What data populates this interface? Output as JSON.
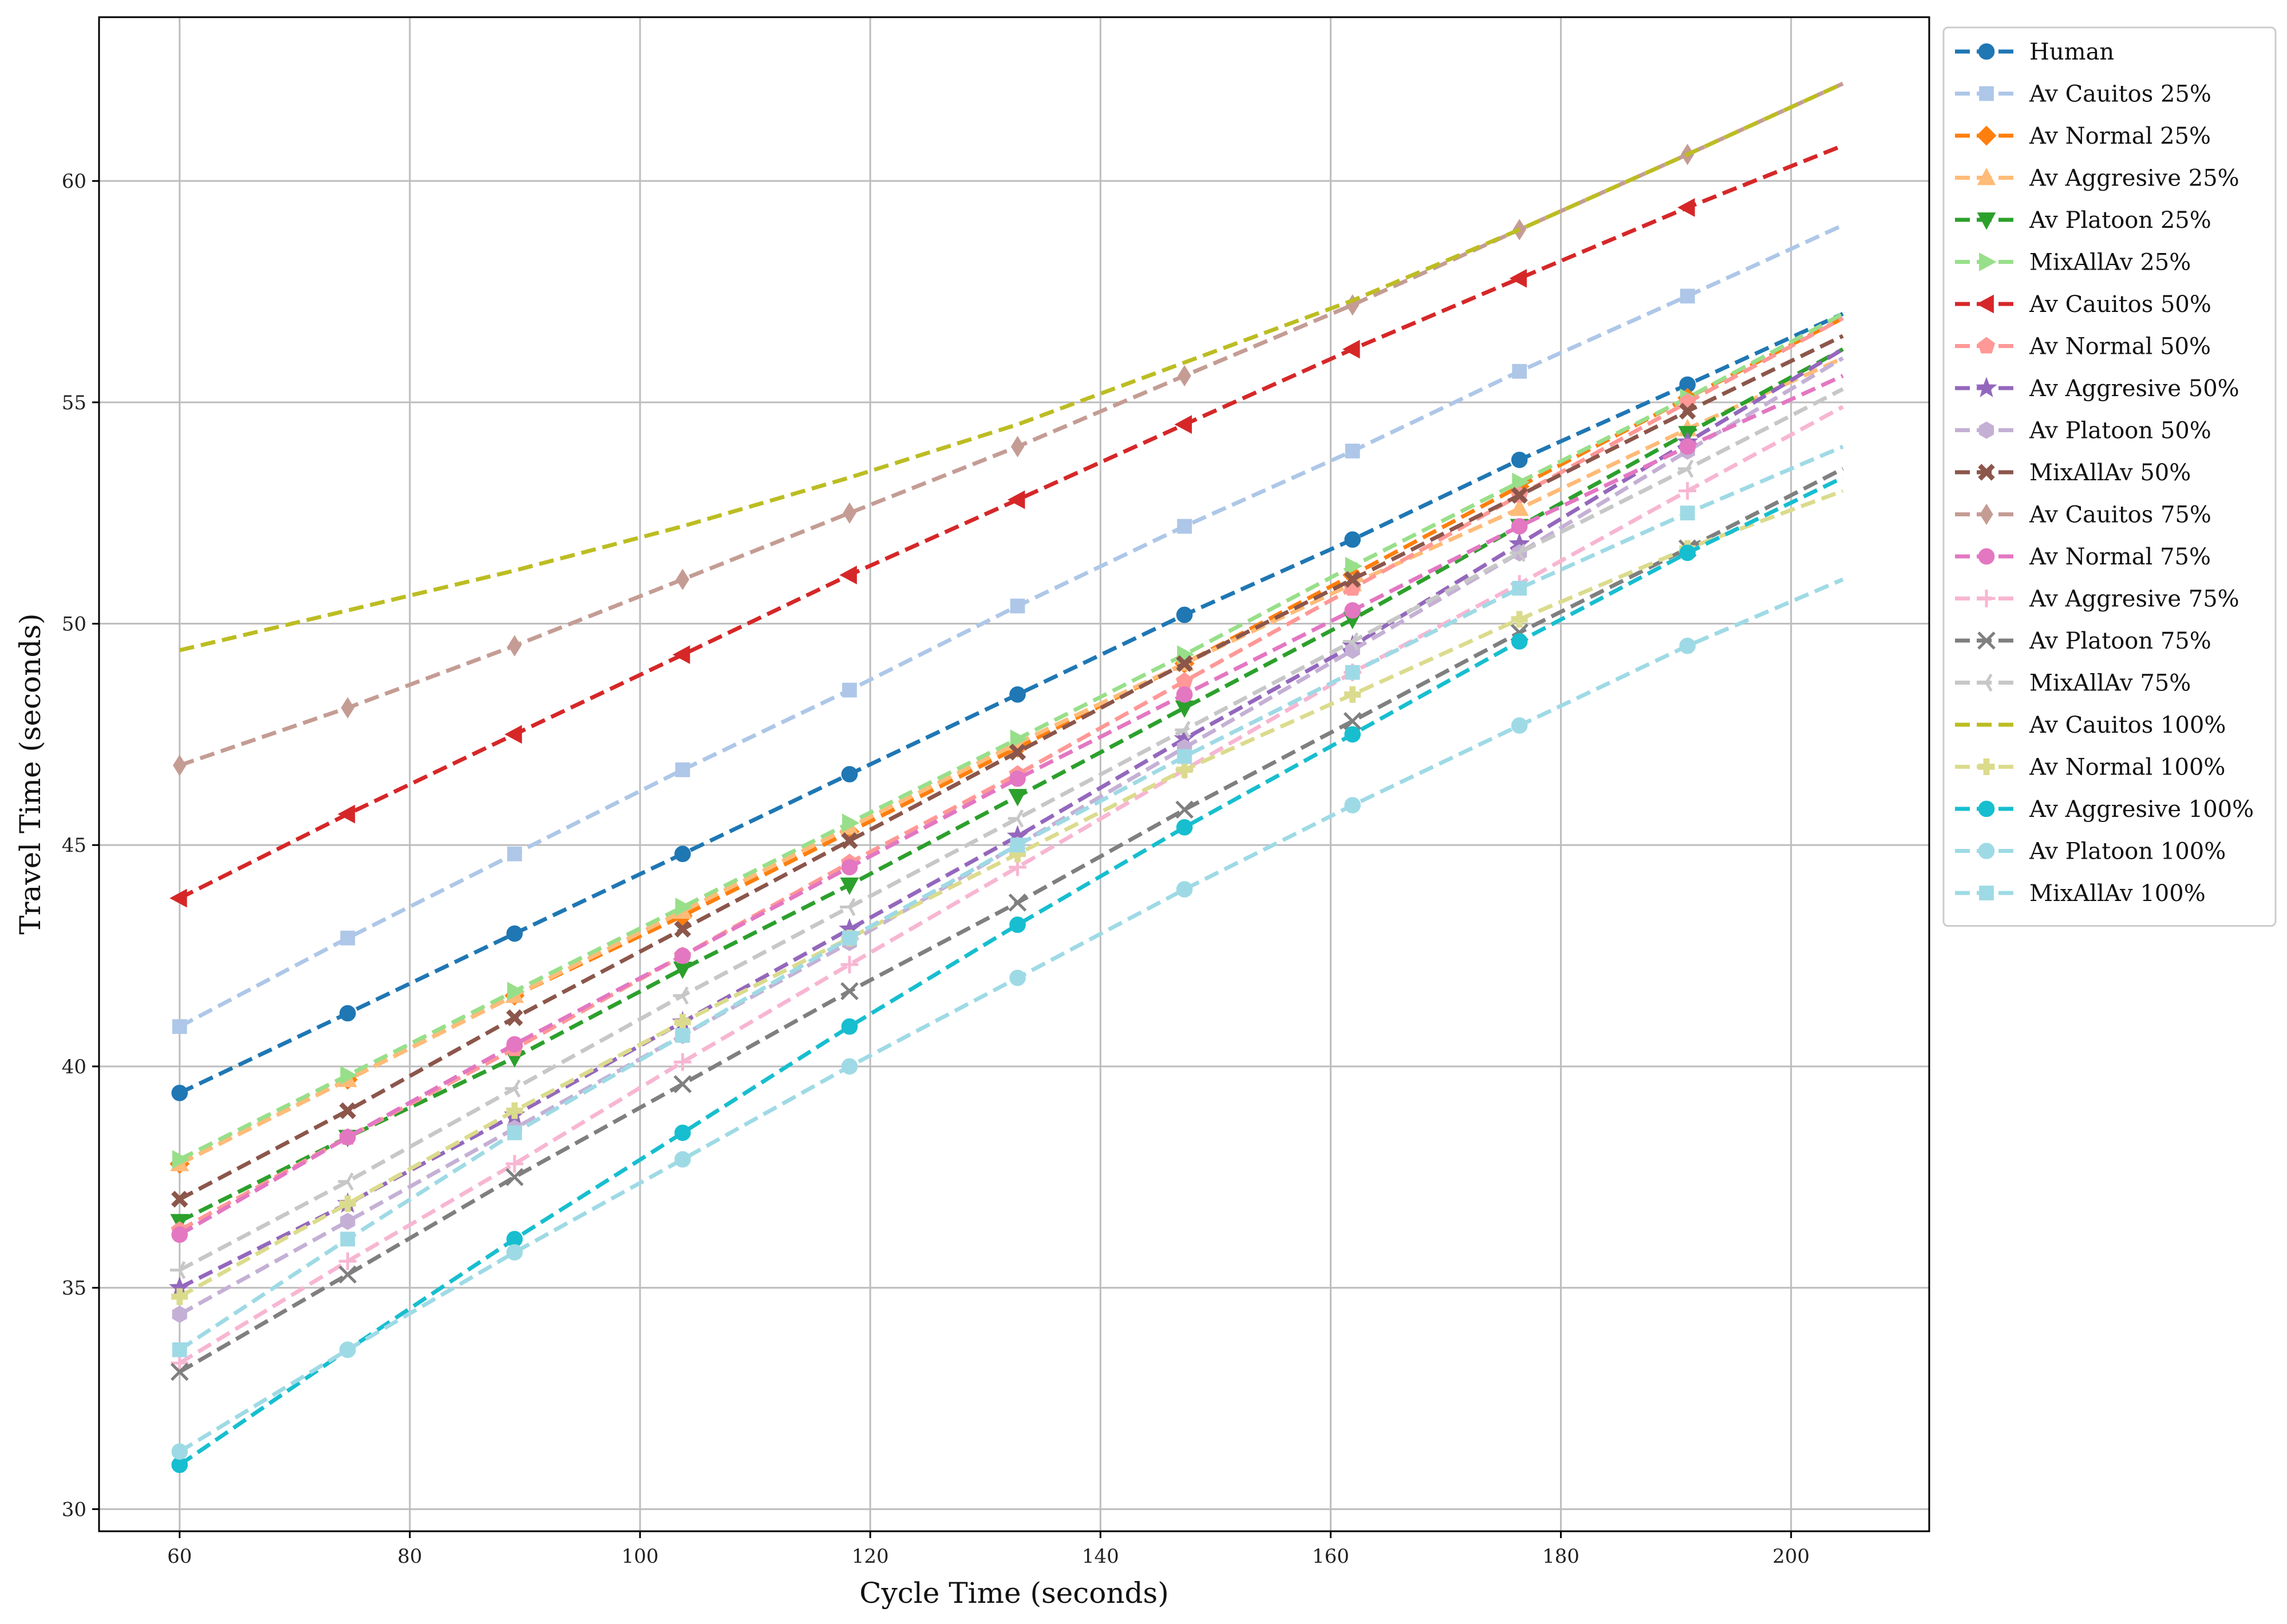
{
  "chart_data": {
    "type": "line",
    "title": "",
    "xlabel": "Cycle Time (seconds)",
    "ylabel": "Travel Time (seconds)",
    "xlim": [
      53,
      212
    ],
    "ylim": [
      29.5,
      63.7
    ],
    "xticks": [
      60,
      80,
      100,
      120,
      140,
      160,
      180,
      200
    ],
    "yticks": [
      30,
      35,
      40,
      45,
      50,
      55,
      60
    ],
    "grid": true,
    "legend_position": "outside-right-top",
    "x": [
      60,
      74.6,
      89.1,
      103.7,
      118.2,
      132.8,
      147.3,
      161.9,
      176.4,
      191.0,
      204.5
    ],
    "series": [
      {
        "name": "Human",
        "color": "#1f77b4",
        "marker": "circle",
        "values": [
          39.4,
          41.2,
          43.0,
          44.8,
          46.6,
          48.4,
          50.2,
          51.9,
          53.7,
          55.4,
          57.0
        ]
      },
      {
        "name": "Av Cauitos 25%",
        "color": "#aec7e8",
        "marker": "square",
        "values": [
          40.9,
          42.9,
          44.8,
          46.7,
          48.5,
          50.4,
          52.2,
          53.9,
          55.7,
          57.4,
          59.0
        ]
      },
      {
        "name": "Av Normal 25%",
        "color": "#ff7f0e",
        "marker": "diamond",
        "values": [
          37.8,
          39.7,
          41.6,
          43.4,
          45.3,
          47.2,
          49.1,
          51.1,
          53.1,
          55.1,
          56.9
        ]
      },
      {
        "name": "Av Aggresive 25%",
        "color": "#ffbb78",
        "marker": "triangle-up",
        "values": [
          37.8,
          39.7,
          41.6,
          43.5,
          45.4,
          47.3,
          49.1,
          50.9,
          52.6,
          54.4,
          56.0
        ]
      },
      {
        "name": "Av Platoon 25%",
        "color": "#2ca02c",
        "marker": "triangle-down",
        "values": [
          36.5,
          38.4,
          40.2,
          42.2,
          44.1,
          46.1,
          48.1,
          50.1,
          52.2,
          54.3,
          56.2
        ]
      },
      {
        "name": "MixAllAv 25%",
        "color": "#98df8a",
        "marker": "triangle-right",
        "values": [
          37.9,
          39.8,
          41.7,
          43.6,
          45.5,
          47.4,
          49.3,
          51.3,
          53.2,
          55.1,
          57.0
        ]
      },
      {
        "name": "Av Cauitos 50%",
        "color": "#d62728",
        "marker": "triangle-left",
        "values": [
          43.8,
          45.7,
          47.5,
          49.3,
          51.1,
          52.8,
          54.5,
          56.2,
          57.8,
          59.4,
          60.8
        ]
      },
      {
        "name": "Av Normal 50%",
        "color": "#ff9896",
        "marker": "pentagon",
        "values": [
          36.3,
          38.4,
          40.4,
          42.5,
          44.6,
          46.6,
          48.7,
          50.8,
          52.9,
          55.0,
          56.9
        ]
      },
      {
        "name": "Av Aggresive 50%",
        "color": "#9467bd",
        "marker": "star",
        "values": [
          35.0,
          36.9,
          38.9,
          41.0,
          43.1,
          45.2,
          47.4,
          49.5,
          51.8,
          54.1,
          56.2
        ]
      },
      {
        "name": "Av Platoon 50%",
        "color": "#c5b0d5",
        "marker": "hexagon",
        "values": [
          34.4,
          36.5,
          38.6,
          40.7,
          42.8,
          45.0,
          47.2,
          49.4,
          51.6,
          53.9,
          56.0
        ]
      },
      {
        "name": "MixAllAv 50%",
        "color": "#8c564b",
        "marker": "x-filled",
        "values": [
          37.0,
          39.0,
          41.1,
          43.1,
          45.1,
          47.1,
          49.1,
          51.0,
          52.9,
          54.8,
          56.5
        ]
      },
      {
        "name": "Av Cauitos 75%",
        "color": "#c49c94",
        "marker": "thin-diamond",
        "values": [
          46.8,
          48.1,
          49.5,
          51.0,
          52.5,
          54.0,
          55.6,
          57.2,
          58.9,
          60.6,
          62.2
        ]
      },
      {
        "name": "Av Normal 75%",
        "color": "#e377c2",
        "marker": "circle",
        "values": [
          36.2,
          38.4,
          40.5,
          42.5,
          44.5,
          46.5,
          48.4,
          50.3,
          52.2,
          54.0,
          55.6
        ]
      },
      {
        "name": "Av Aggresive 75%",
        "color": "#f7b6d2",
        "marker": "plus",
        "values": [
          33.3,
          35.6,
          37.8,
          40.1,
          42.3,
          44.5,
          46.7,
          48.9,
          50.9,
          53.0,
          54.9
        ]
      },
      {
        "name": "Av Platoon 75%",
        "color": "#7f7f7f",
        "marker": "x",
        "values": [
          33.1,
          35.3,
          37.5,
          39.6,
          41.7,
          43.7,
          45.8,
          47.8,
          49.8,
          51.7,
          53.5
        ]
      },
      {
        "name": "MixAllAv 75%",
        "color": "#c7c7c7",
        "marker": "tri-left",
        "values": [
          35.4,
          37.4,
          39.5,
          41.6,
          43.6,
          45.6,
          47.6,
          49.6,
          51.6,
          53.5,
          55.3
        ]
      },
      {
        "name": "Av Cauitos 100%",
        "color": "#bcbd22",
        "marker": "none",
        "values": [
          49.4,
          50.3,
          51.2,
          52.2,
          53.3,
          54.5,
          55.9,
          57.3,
          58.9,
          60.6,
          62.2
        ]
      },
      {
        "name": "Av Normal 100%",
        "color": "#dbdb8d",
        "marker": "plus-filled",
        "values": [
          34.8,
          36.9,
          39.0,
          41.0,
          42.9,
          44.8,
          46.7,
          48.4,
          50.1,
          51.7,
          53.0
        ]
      },
      {
        "name": "Av Aggresive 100%",
        "color": "#17becf",
        "marker": "circle",
        "values": [
          31.0,
          33.6,
          36.1,
          38.5,
          40.9,
          43.2,
          45.4,
          47.5,
          49.6,
          51.6,
          53.3
        ]
      },
      {
        "name": "Av Platoon 100%",
        "color": "#9edae5",
        "marker": "circle",
        "values": [
          31.3,
          33.6,
          35.8,
          37.9,
          40.0,
          42.0,
          44.0,
          45.9,
          47.7,
          49.5,
          51.0
        ]
      },
      {
        "name": "MixAllAv 100%",
        "color": "#9edae5",
        "marker": "square",
        "values": [
          33.6,
          36.1,
          38.5,
          40.7,
          42.9,
          45.0,
          47.0,
          48.9,
          50.8,
          52.5,
          54.0
        ]
      }
    ]
  }
}
